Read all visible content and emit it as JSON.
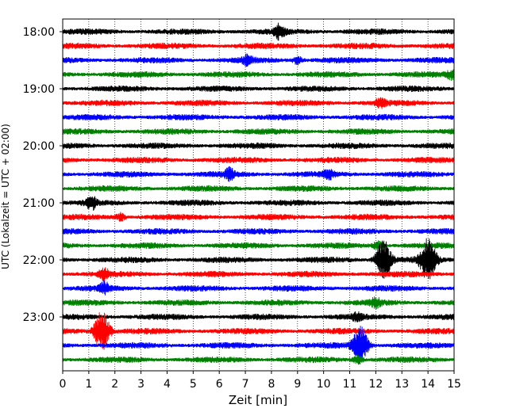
{
  "chart_data": {
    "type": "line",
    "title": "",
    "xlabel": "Zeit  [min]",
    "ylabel": "UTC (Lokalzeit = UTC + 02:00)",
    "xlim": [
      0,
      15
    ],
    "x_ticks": [
      0,
      1,
      2,
      3,
      4,
      5,
      6,
      7,
      8,
      9,
      10,
      11,
      12,
      13,
      14,
      15
    ],
    "x_tick_labels": [
      "0",
      "1",
      "2",
      "3",
      "4",
      "5",
      "6",
      "7",
      "8",
      "9",
      "10",
      "11",
      "12",
      "13",
      "14",
      "15"
    ],
    "y_tick_labels": [
      "18:00",
      "19:00",
      "20:00",
      "21:00",
      "22:00",
      "23:00"
    ],
    "grid": "vertical dotted",
    "trace_interval_minutes": 15,
    "start_time": "18:00",
    "trace_colors": [
      "#000000",
      "#ff0000",
      "#0000ff",
      "#008000"
    ],
    "traces": [
      {
        "start": "18:00",
        "color": "#000000",
        "events": [
          {
            "t": 8.3,
            "amp": 0.9
          }
        ]
      },
      {
        "start": "18:15",
        "color": "#ff0000",
        "events": []
      },
      {
        "start": "18:30",
        "color": "#0000ff",
        "events": [
          {
            "t": 7.1,
            "amp": 0.6
          },
          {
            "t": 9.0,
            "amp": 0.5
          }
        ]
      },
      {
        "start": "18:45",
        "color": "#008000",
        "events": [
          {
            "t": 14.9,
            "amp": 0.6
          }
        ]
      },
      {
        "start": "19:00",
        "color": "#000000",
        "events": []
      },
      {
        "start": "19:15",
        "color": "#ff0000",
        "events": [
          {
            "t": 12.2,
            "amp": 0.6
          }
        ]
      },
      {
        "start": "19:30",
        "color": "#0000ff",
        "events": []
      },
      {
        "start": "19:45",
        "color": "#008000",
        "events": []
      },
      {
        "start": "20:00",
        "color": "#000000",
        "events": []
      },
      {
        "start": "20:15",
        "color": "#ff0000",
        "events": []
      },
      {
        "start": "20:30",
        "color": "#0000ff",
        "events": [
          {
            "t": 6.4,
            "amp": 0.7
          },
          {
            "t": 10.2,
            "amp": 0.5
          }
        ]
      },
      {
        "start": "20:45",
        "color": "#008000",
        "events": []
      },
      {
        "start": "21:00",
        "color": "#000000",
        "events": [
          {
            "t": 1.1,
            "amp": 0.8
          }
        ]
      },
      {
        "start": "21:15",
        "color": "#ff0000",
        "events": [
          {
            "t": 2.2,
            "amp": 0.5
          }
        ]
      },
      {
        "start": "21:30",
        "color": "#0000ff",
        "events": []
      },
      {
        "start": "21:45",
        "color": "#008000",
        "events": [
          {
            "t": 12.1,
            "amp": 0.6
          }
        ]
      },
      {
        "start": "22:00",
        "color": "#000000",
        "events": [
          {
            "t": 12.3,
            "amp": 2.6
          },
          {
            "t": 14.0,
            "amp": 2.8
          }
        ]
      },
      {
        "start": "22:15",
        "color": "#ff0000",
        "events": [
          {
            "t": 1.6,
            "amp": 0.9
          }
        ]
      },
      {
        "start": "22:30",
        "color": "#0000ff",
        "events": [
          {
            "t": 1.6,
            "amp": 0.7
          }
        ]
      },
      {
        "start": "22:45",
        "color": "#008000",
        "events": [
          {
            "t": 12.0,
            "amp": 0.5
          }
        ]
      },
      {
        "start": "23:00",
        "color": "#000000",
        "events": [
          {
            "t": 11.3,
            "amp": 0.5
          }
        ]
      },
      {
        "start": "23:15",
        "color": "#ff0000",
        "events": [
          {
            "t": 1.5,
            "amp": 2.8
          }
        ]
      },
      {
        "start": "23:30",
        "color": "#0000ff",
        "events": [
          {
            "t": 11.4,
            "amp": 2.6
          }
        ]
      },
      {
        "start": "23:45",
        "color": "#008000",
        "events": [
          {
            "t": 11.3,
            "amp": 0.6
          }
        ]
      }
    ]
  }
}
